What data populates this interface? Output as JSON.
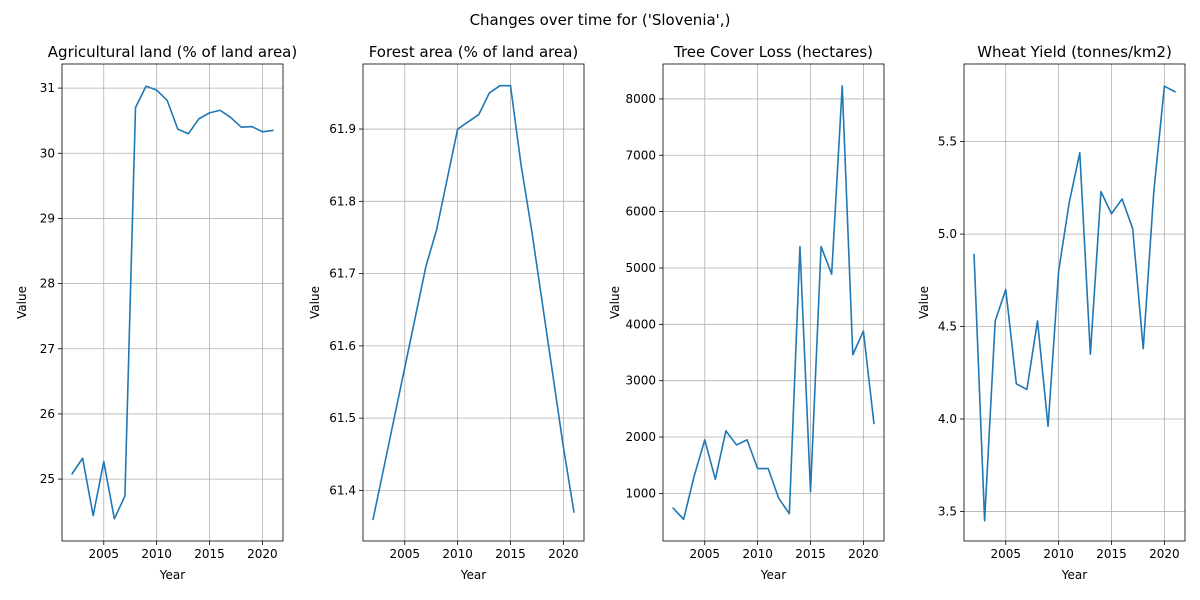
{
  "figure": {
    "suptitle": "Changes over time for ('Slovenia',)"
  },
  "chart_data": [
    {
      "type": "line",
      "title": "Agricultural land (% of land area)",
      "xlabel": "Year",
      "ylabel": "Value",
      "xlim": [
        2001.05,
        2021.95
      ],
      "ylim": [
        24.05,
        31.37
      ],
      "xticks": [
        2005,
        2010,
        2015,
        2020
      ],
      "yticks": [
        25,
        26,
        27,
        28,
        29,
        30,
        31
      ],
      "ytick_labels": [
        "25",
        "26",
        "27",
        "28",
        "29",
        "30",
        "31"
      ],
      "grid": true,
      "line_color": "#1f77b4",
      "x": [
        2002,
        2003,
        2004,
        2005,
        2006,
        2007,
        2008,
        2009,
        2010,
        2011,
        2012,
        2013,
        2014,
        2015,
        2016,
        2017,
        2018,
        2019,
        2020,
        2021
      ],
      "y": [
        25.08,
        25.32,
        24.44,
        25.27,
        24.39,
        24.74,
        30.7,
        31.03,
        30.97,
        30.81,
        30.37,
        30.3,
        30.53,
        30.62,
        30.66,
        30.55,
        30.4,
        30.41,
        30.33,
        30.35
      ]
    },
    {
      "type": "line",
      "title": "Forest area (% of land area)",
      "xlabel": "Year",
      "ylabel": "Value",
      "xlim": [
        2001.05,
        2021.95
      ],
      "ylim": [
        61.33,
        61.99
      ],
      "xticks": [
        2005,
        2010,
        2015,
        2020
      ],
      "yticks": [
        61.4,
        61.5,
        61.6,
        61.7,
        61.8,
        61.9
      ],
      "ytick_labels": [
        "61.4",
        "61.5",
        "61.6",
        "61.7",
        "61.8",
        "61.9"
      ],
      "grid": true,
      "line_color": "#1f77b4",
      "x": [
        2002,
        2003,
        2004,
        2005,
        2006,
        2007,
        2008,
        2009,
        2010,
        2011,
        2012,
        2013,
        2014,
        2015,
        2016,
        2017,
        2018,
        2019,
        2020,
        2021
      ],
      "y": [
        61.36,
        61.43,
        61.5,
        61.57,
        61.64,
        61.71,
        61.76,
        61.83,
        61.9,
        61.91,
        61.92,
        61.95,
        61.96,
        61.96,
        61.85,
        61.76,
        61.66,
        61.56,
        61.46,
        61.37
      ]
    },
    {
      "type": "line",
      "title": "Tree Cover Loss (hectares)",
      "xlabel": "Year",
      "ylabel": "Value",
      "xlim": [
        2001.05,
        2021.95
      ],
      "ylim": [
        155,
        8620
      ],
      "xticks": [
        2005,
        2010,
        2015,
        2020
      ],
      "yticks": [
        1000,
        2000,
        3000,
        4000,
        5000,
        6000,
        7000,
        8000
      ],
      "ytick_labels": [
        "1000",
        "2000",
        "3000",
        "4000",
        "5000",
        "6000",
        "7000",
        "8000"
      ],
      "grid": true,
      "line_color": "#1f77b4",
      "x": [
        2002,
        2003,
        2004,
        2005,
        2006,
        2007,
        2008,
        2009,
        2010,
        2011,
        2012,
        2013,
        2014,
        2015,
        2016,
        2017,
        2018,
        2019,
        2020,
        2021
      ],
      "y": [
        740,
        540,
        1310,
        1950,
        1250,
        2110,
        1860,
        1950,
        1440,
        1440,
        910,
        640,
        5380,
        1030,
        5380,
        4890,
        8230,
        3460,
        3880,
        2240
      ]
    },
    {
      "type": "line",
      "title": "Wheat Yield (tonnes/km2)",
      "xlabel": "Year",
      "ylabel": "Value",
      "xlim": [
        2001.05,
        2021.95
      ],
      "ylim": [
        3.34,
        5.92
      ],
      "xticks": [
        2005,
        2010,
        2015,
        2020
      ],
      "yticks": [
        3.5,
        4.0,
        4.5,
        5.0,
        5.5
      ],
      "ytick_labels": [
        "3.5",
        "4.0",
        "4.5",
        "5.0",
        "5.5"
      ],
      "grid": true,
      "line_color": "#1f77b4",
      "x": [
        2002,
        2003,
        2004,
        2005,
        2006,
        2007,
        2008,
        2009,
        2010,
        2011,
        2012,
        2013,
        2014,
        2015,
        2016,
        2017,
        2018,
        2019,
        2020,
        2021
      ],
      "y": [
        4.89,
        3.45,
        4.53,
        4.7,
        4.19,
        4.16,
        4.53,
        3.96,
        4.8,
        5.17,
        5.44,
        4.35,
        5.23,
        5.11,
        5.19,
        5.03,
        4.38,
        5.23,
        5.8,
        5.77
      ]
    }
  ]
}
